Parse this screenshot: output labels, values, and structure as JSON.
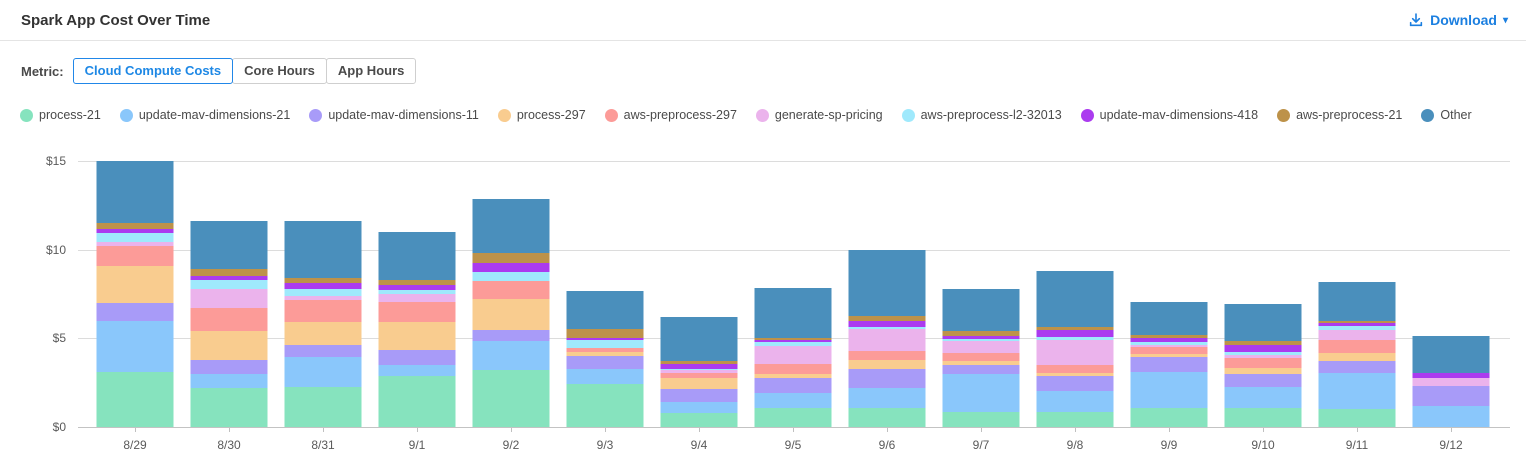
{
  "header": {
    "title": "Spark App Cost Over Time",
    "download_label": "Download",
    "accent_blue": "#1b7fe0"
  },
  "metric": {
    "label": "Metric:",
    "tabs": [
      {
        "label": "Cloud Compute Costs",
        "active": true
      },
      {
        "label": "Core Hours",
        "active": false
      },
      {
        "label": "App Hours",
        "active": false
      }
    ]
  },
  "chart_data": {
    "type": "bar",
    "stacked": true,
    "title": "Spark App Cost Over Time",
    "xlabel": "",
    "ylabel": "",
    "ylim": [
      0,
      15
    ],
    "y_ticks": [
      0,
      5,
      10,
      15
    ],
    "y_tick_prefix": "$",
    "grid": true,
    "legend_position": "top",
    "categories": [
      "8/29",
      "8/30",
      "8/31",
      "9/1",
      "9/2",
      "9/3",
      "9/4",
      "9/5",
      "9/6",
      "9/7",
      "9/8",
      "9/9",
      "9/10",
      "9/11",
      "9/12"
    ],
    "series": [
      {
        "name": "process-21",
        "color": "#86e3be",
        "values": [
          3.1,
          2.2,
          2.25,
          2.9,
          3.2,
          2.45,
          0.8,
          1.1,
          1.05,
          0.85,
          0.85,
          1.1,
          1.1,
          1.0,
          0
        ]
      },
      {
        "name": "update-mav-dimensions-21",
        "color": "#8ac7fb",
        "values": [
          2.9,
          0.8,
          1.7,
          0.6,
          1.65,
          0.85,
          0.6,
          0.8,
          1.15,
          2.15,
          1.2,
          2.0,
          1.15,
          2.05,
          1.2
        ]
      },
      {
        "name": "update-mav-dimensions-11",
        "color": "#a89bf8",
        "values": [
          1.0,
          0.8,
          0.7,
          0.85,
          0.65,
          0.7,
          0.75,
          0.85,
          1.05,
          0.5,
          0.8,
          0.85,
          0.75,
          0.65,
          1.1
        ]
      },
      {
        "name": "process-297",
        "color": "#f9cc8f",
        "values": [
          2.1,
          1.6,
          1.3,
          1.6,
          1.7,
          0.25,
          0.6,
          0.25,
          0.55,
          0.25,
          0.2,
          0.15,
          0.35,
          0.5,
          0
        ]
      },
      {
        "name": "aws-preprocess-297",
        "color": "#fc9b98",
        "values": [
          1.1,
          1.3,
          1.2,
          1.1,
          1.05,
          0.2,
          0.3,
          0.55,
          0.5,
          0.45,
          0.45,
          0.4,
          0.55,
          0.7,
          0
        ]
      },
      {
        "name": "generate-sp-pricing",
        "color": "#ebb3ec",
        "values": [
          0.25,
          1.1,
          0.25,
          0.45,
          0,
          0,
          0.15,
          1.0,
          1.2,
          0.65,
          1.4,
          0.1,
          0.15,
          0.55,
          0.45
        ]
      },
      {
        "name": "aws-preprocess-l2-32013",
        "color": "#9fe9fc",
        "values": [
          0.5,
          0.5,
          0.4,
          0.25,
          0.5,
          0.45,
          0.05,
          0.25,
          0.15,
          0.1,
          0.15,
          0.2,
          0.2,
          0.25,
          0
        ]
      },
      {
        "name": "update-mav-dimensions-418",
        "color": "#ab3bef",
        "values": [
          0.25,
          0.2,
          0.3,
          0.25,
          0.5,
          0.15,
          0.3,
          0.1,
          0.35,
          0.2,
          0.4,
          0.2,
          0.4,
          0.15,
          0.3
        ]
      },
      {
        "name": "aws-preprocess-21",
        "color": "#bd9249",
        "values": [
          0.3,
          0.4,
          0.3,
          0.3,
          0.55,
          0.5,
          0.15,
          0.1,
          0.25,
          0.25,
          0.2,
          0.2,
          0.2,
          0.15,
          0
        ]
      },
      {
        "name": "Other",
        "color": "#4a8fbc",
        "values": [
          3.5,
          2.7,
          3.2,
          2.7,
          3.05,
          2.15,
          2.5,
          2.85,
          3.75,
          2.4,
          3.15,
          1.85,
          2.1,
          2.2,
          2.1
        ]
      }
    ]
  }
}
